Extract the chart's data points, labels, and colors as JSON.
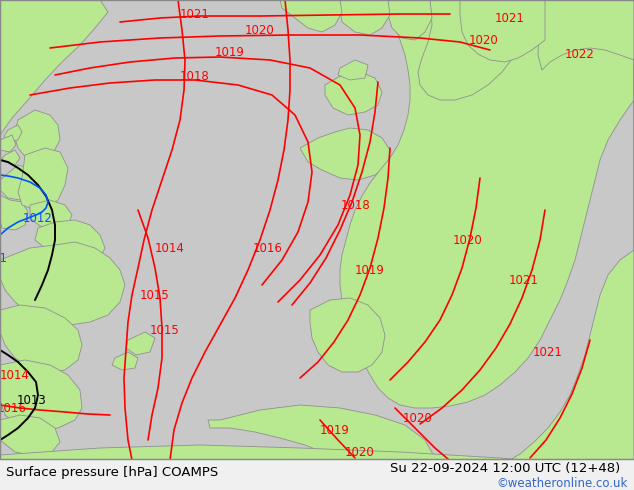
{
  "title_left": "Surface pressure [hPa] COAMPS",
  "title_right": "Su 22-09-2024 12:00 UTC (12+48)",
  "credit": "©weatheronline.co.uk",
  "sea_color": "#c8c8c8",
  "land_color": "#b8e890",
  "border_color": "#909090",
  "bar_color": "#f0f0f0",
  "red": "#ff0000",
  "black": "#000000",
  "blue": "#0055ff",
  "blue_credit": "#3366cc",
  "figsize": [
    6.34,
    4.9
  ],
  "dpi": 100,
  "lw_iso": 1.2,
  "fs_label": 8.5,
  "fs_title": 9.5,
  "fs_credit": 8.5
}
